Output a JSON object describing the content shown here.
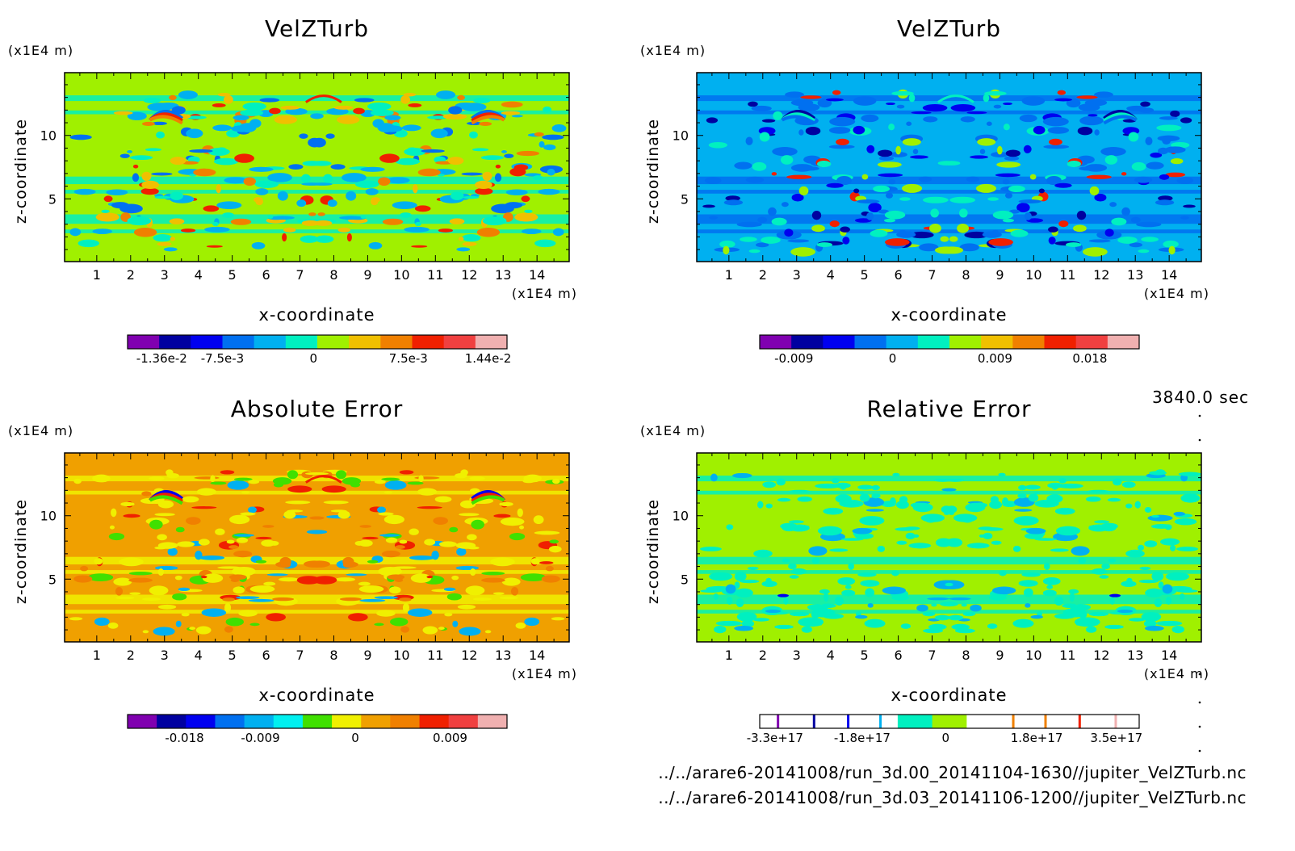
{
  "time_label": "3840.0 sec",
  "files": [
    "../../arare6-20141008/run_3d.00_20141104-1630//jupiter_VelZTurb.nc",
    "../../arare6-20141008/run_3d.03_20141106-1200//jupiter_VelZTurb.nc"
  ],
  "panels": [
    {
      "title": "VelZTurb",
      "bg": "#a0f000",
      "scheme": "a",
      "colorbar": {
        "colors": [
          "#8000b0",
          "#0000a0",
          "#0000f0",
          "#0070f0",
          "#00b0f0",
          "#00f0c0",
          "#a0f000",
          "#f0c000",
          "#f08000",
          "#f02000",
          "#f04040",
          "#f0b0b0"
        ],
        "tick_labels": [
          "-1.36e-2",
          "-7.5e-3",
          "0",
          "7.5e-3",
          "1.44e-2"
        ]
      }
    },
    {
      "title": "VelZTurb",
      "bg": "#00b0f0",
      "scheme": "b",
      "colorbar": {
        "colors": [
          "#8000b0",
          "#0000a0",
          "#0000f0",
          "#0070f0",
          "#00b0f0",
          "#00f0c0",
          "#a0f000",
          "#f0c000",
          "#f08000",
          "#f02000",
          "#f04040",
          "#f0b0b0"
        ],
        "tick_labels": [
          "-0.009",
          "0",
          "0.009",
          "0.018"
        ]
      }
    },
    {
      "title": "Absolute Error",
      "bg": "#f0a000",
      "scheme": "c",
      "colorbar": {
        "colors": [
          "#8000b0",
          "#0000a0",
          "#0000f0",
          "#0070f0",
          "#00b0f0",
          "#00f0f0",
          "#40e000",
          "#f0f000",
          "#f0a000",
          "#f08000",
          "#f02000",
          "#f04040",
          "#f0b0b0"
        ],
        "tick_labels": [
          "-0.018",
          "-0.009",
          "0",
          "0.009"
        ]
      }
    },
    {
      "title": "Relative Error",
      "bg": "#a0f000",
      "scheme": "d",
      "colorbar": {
        "colors": [
          "#ffffff",
          "#ffffff",
          "#ffffff",
          "#ffffff",
          "#00f0c0",
          "#a0f000",
          "#ffffff",
          "#ffffff",
          "#ffffff",
          "#ffffff",
          "#ffffff"
        ],
        "tick_labels": [
          "-3.3e+17",
          "-1.8e+17",
          "0",
          "1.8e+17",
          "3.5e+17"
        ]
      }
    }
  ],
  "axes": {
    "xlabel": "x-coordinate",
    "ylabel": "z-coordinate",
    "x_unit": "(x1E4 m)",
    "y_unit": "(x1E4 m)",
    "x_ticks": [
      1,
      2,
      3,
      4,
      5,
      6,
      7,
      8,
      9,
      10,
      11,
      12,
      13,
      14
    ],
    "y_ticks": [
      5,
      10
    ],
    "xlim": [
      0.05,
      14.95
    ],
    "ylim": [
      0.05,
      14.95
    ]
  },
  "chart_data": [
    {
      "type": "heatmap",
      "title": "VelZTurb",
      "xlabel": "x-coordinate",
      "ylabel": "z-coordinate",
      "xlim": [
        0,
        15
      ],
      "ylim": [
        0,
        15
      ],
      "colorbar_range": [
        -0.0136,
        0.0144
      ]
    },
    {
      "type": "heatmap",
      "title": "VelZTurb",
      "xlabel": "x-coordinate",
      "ylabel": "z-coordinate",
      "xlim": [
        0,
        15
      ],
      "ylim": [
        0,
        15
      ],
      "colorbar_range": [
        -0.009,
        0.018
      ]
    },
    {
      "type": "heatmap",
      "title": "Absolute Error",
      "xlabel": "x-coordinate",
      "ylabel": "z-coordinate",
      "xlim": [
        0,
        15
      ],
      "ylim": [
        0,
        15
      ],
      "colorbar_range": [
        -0.018,
        0.009
      ]
    },
    {
      "type": "heatmap",
      "title": "Relative Error",
      "xlabel": "x-coordinate",
      "ylabel": "z-coordinate",
      "xlim": [
        0,
        15
      ],
      "ylim": [
        0,
        15
      ],
      "colorbar_range": [
        -3.3e+17,
        3.5e+17
      ]
    }
  ]
}
